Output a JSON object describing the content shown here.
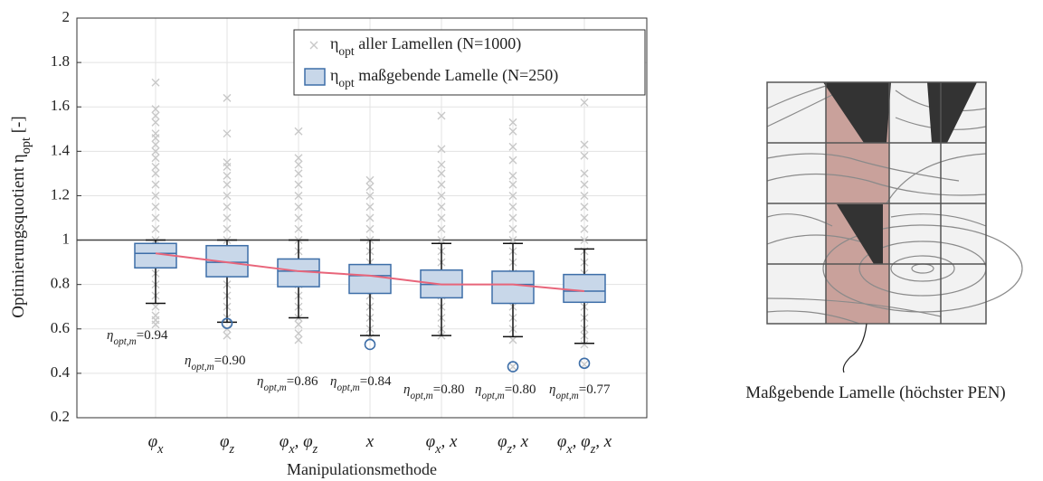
{
  "chart_data": {
    "type": "box",
    "y_label": "Optimierungsquotient ηopt [-]",
    "x_label": "Manipulationsmethode",
    "categories": [
      "φx",
      "φz",
      "φx, φz",
      "x",
      "φx, x",
      "φz, x",
      "φx, φz, x"
    ],
    "ylim": [
      0.2,
      2
    ],
    "yticks": [
      0.2,
      0.4,
      0.6,
      0.8,
      1,
      1.2,
      1.4,
      1.6,
      1.8,
      2
    ],
    "grid": true,
    "reference_line": 1,
    "legend": "upper right",
    "scatter": {
      "name": "ηopt aller Lamellen (N=1000)",
      "color": "#c8c8c8",
      "values": [
        [
          0.62,
          0.64,
          0.66,
          0.7,
          0.75,
          0.8,
          0.85,
          0.9,
          0.95,
          1.0,
          1.05,
          1.1,
          1.15,
          1.2,
          1.25,
          1.3,
          1.33,
          1.37,
          1.4,
          1.43,
          1.46,
          1.48,
          1.53,
          1.56,
          1.59,
          1.71
        ],
        [
          0.57,
          0.6,
          0.65,
          0.7,
          0.75,
          0.8,
          0.85,
          0.9,
          0.95,
          1.0,
          1.05,
          1.1,
          1.15,
          1.2,
          1.25,
          1.29,
          1.33,
          1.35,
          1.48,
          1.64
        ],
        [
          0.55,
          0.58,
          0.62,
          0.65,
          0.7,
          0.75,
          0.8,
          0.85,
          0.9,
          0.95,
          1.0,
          1.05,
          1.1,
          1.15,
          1.2,
          1.25,
          1.3,
          1.34,
          1.37,
          1.49
        ],
        [
          0.56,
          0.6,
          0.65,
          0.7,
          0.75,
          0.8,
          0.85,
          0.9,
          0.95,
          1.0,
          1.05,
          1.1,
          1.15,
          1.2,
          1.24,
          1.27
        ],
        [
          0.57,
          0.6,
          0.65,
          0.7,
          0.75,
          0.8,
          0.85,
          0.9,
          0.95,
          1.0,
          1.05,
          1.1,
          1.15,
          1.2,
          1.25,
          1.3,
          1.34,
          1.41,
          1.56
        ],
        [
          0.43,
          0.55,
          0.6,
          0.65,
          0.7,
          0.75,
          0.8,
          0.85,
          0.9,
          0.95,
          1.0,
          1.05,
          1.1,
          1.15,
          1.2,
          1.25,
          1.29,
          1.36,
          1.42,
          1.49,
          1.53
        ],
        [
          0.44,
          0.53,
          0.57,
          0.6,
          0.65,
          0.7,
          0.75,
          0.8,
          0.85,
          0.9,
          0.95,
          1.0,
          1.05,
          1.1,
          1.15,
          1.2,
          1.25,
          1.3,
          1.38,
          1.43,
          1.62
        ]
      ]
    },
    "boxes": {
      "name": "ηopt maßgebende Lamelle (N=250)",
      "color": "#c8d7e9",
      "edge_color": "#3d6ea8",
      "whisker_low": [
        0.715,
        0.63,
        0.65,
        0.57,
        0.57,
        0.565,
        0.535
      ],
      "q1": [
        0.875,
        0.835,
        0.79,
        0.76,
        0.74,
        0.715,
        0.72
      ],
      "median": [
        0.94,
        0.9,
        0.86,
        0.84,
        0.8,
        0.8,
        0.77
      ],
      "q3": [
        0.985,
        0.975,
        0.915,
        0.89,
        0.865,
        0.86,
        0.845
      ],
      "whisker_high": [
        1.0,
        1.0,
        1.0,
        1.0,
        0.985,
        0.985,
        0.96
      ],
      "outliers": [
        [],
        [
          0.625
        ],
        [],
        [
          0.53
        ],
        [],
        [
          0.43
        ],
        [
          0.445
        ]
      ]
    },
    "median_line_color": "#e8657a",
    "median_annotation": "ηopt,m",
    "median_labels": [
      "=0.94",
      "=0.90",
      "=0.86",
      "=0.84",
      "=0.80",
      "=0.80",
      "=0.77"
    ]
  },
  "diagram": {
    "caption": "Maßgebende Lamelle (höchster PEN)"
  }
}
